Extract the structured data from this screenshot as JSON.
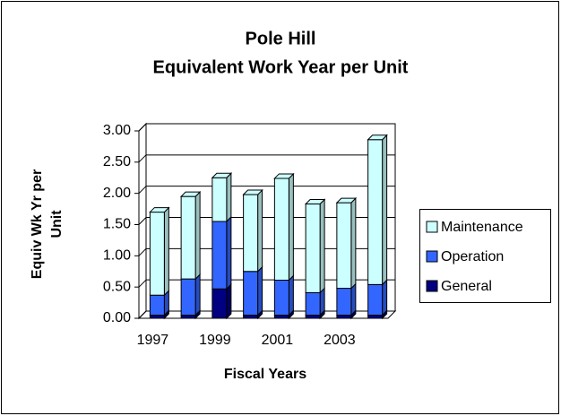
{
  "chart_data": {
    "type": "bar3d_stacked",
    "title": "Pole Hill",
    "subtitle": "Equivalent Work Year per Unit",
    "ylabel": [
      "Equiv Wk Yr per",
      "Unit"
    ],
    "xlabel": "Fiscal Years",
    "categories": [
      "1997",
      null,
      "1999",
      null,
      "2001",
      null,
      "2003",
      null
    ],
    "series": [
      {
        "name": "General",
        "color": "#000080",
        "values": [
          0.05,
          0.05,
          0.47,
          0.05,
          0.05,
          0.05,
          0.05,
          0.05
        ]
      },
      {
        "name": "Operation",
        "color": "#3366ff",
        "values": [
          0.32,
          0.58,
          1.08,
          0.7,
          0.56,
          0.36,
          0.43,
          0.49
        ]
      },
      {
        "name": "Maintenance",
        "color": "#ccffff",
        "values": [
          1.33,
          1.32,
          0.7,
          1.23,
          1.63,
          1.42,
          1.37,
          2.32
        ]
      }
    ],
    "ylim": [
      0,
      3
    ],
    "yticks": [
      {
        "value": 0,
        "label": "0.00"
      },
      {
        "value": 0.5,
        "label": "0.50"
      },
      {
        "value": 1,
        "label": "1.00"
      },
      {
        "value": 1.5,
        "label": "1.50"
      },
      {
        "value": 2,
        "label": "2.00"
      },
      {
        "value": 2.5,
        "label": "2.50"
      },
      {
        "value": 3,
        "label": "3.00"
      }
    ],
    "grid": true,
    "legend": "right"
  }
}
